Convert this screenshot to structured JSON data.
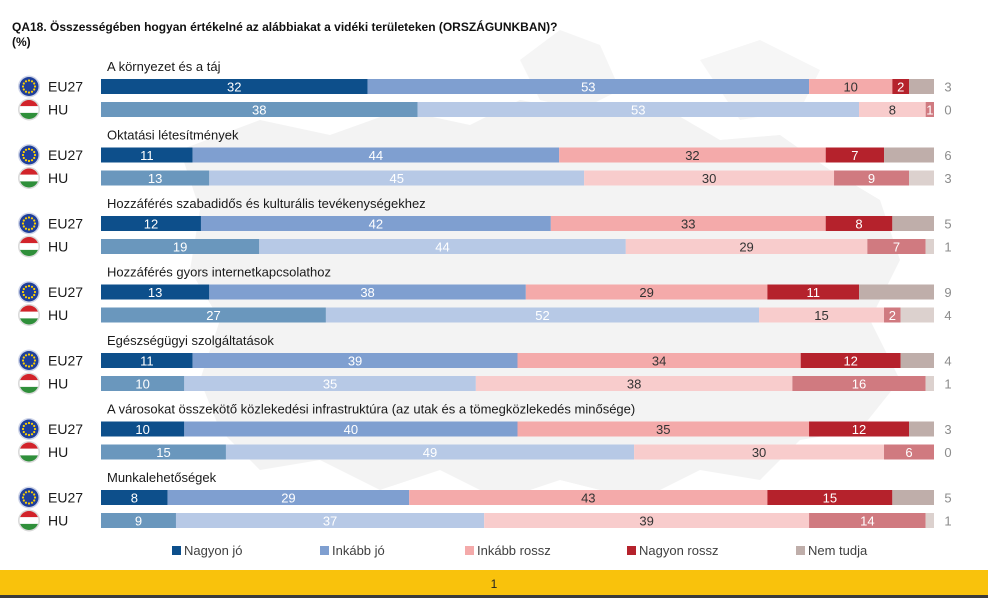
{
  "title_line1": "QA18. Összességében hogyan értékelné az alábbiakat a vidéki területeken (ORSZÁGUNKBAN)?",
  "title_line2": "(%)",
  "page_number": "1",
  "colors": {
    "nagyon_jo": "#0d4f8b",
    "inkabb_jo": "#7f9fd0",
    "inkabb_rossz": "#f4aaaa",
    "nagyon_rossz": "#b5222c",
    "nem_tudja": "#bfaeaa",
    "hu_nagyon_jo": "#6a97bd",
    "hu_inkabb_jo": "#b7c9e6",
    "hu_inkabb_rossz": "#f8cccc",
    "hu_nagyon_rossz": "#d07a80",
    "hu_nem_tudja": "#dcd1ce"
  },
  "chart_data": {
    "type": "bar",
    "orientation": "horizontal",
    "stacked": true,
    "unit": "%",
    "legend": [
      "Nagyon jó",
      "Inkább jó",
      "Inkább rossz",
      "Nagyon rossz",
      "Nem tudja"
    ],
    "legend_position": "bottom",
    "groups": [
      {
        "category": "A környezet és a táj",
        "rows": [
          {
            "label": "EU27",
            "flag": "eu-flag-icon",
            "values": [
              32,
              53,
              10,
              2,
              3
            ]
          },
          {
            "label": "HU",
            "flag": "hu-flag-icon",
            "values": [
              38,
              53,
              8,
              1,
              0
            ]
          }
        ]
      },
      {
        "category": "Oktatási létesítmények",
        "rows": [
          {
            "label": "EU27",
            "flag": "eu-flag-icon",
            "values": [
              11,
              44,
              32,
              7,
              6
            ]
          },
          {
            "label": "HU",
            "flag": "hu-flag-icon",
            "values": [
              13,
              45,
              30,
              9,
              3
            ]
          }
        ]
      },
      {
        "category": "Hozzáférés szabadidős és kulturális tevékenységekhez",
        "rows": [
          {
            "label": "EU27",
            "flag": "eu-flag-icon",
            "values": [
              12,
              42,
              33,
              8,
              5
            ]
          },
          {
            "label": "HU",
            "flag": "hu-flag-icon",
            "values": [
              19,
              44,
              29,
              7,
              1
            ]
          }
        ]
      },
      {
        "category": "Hozzáférés gyors internetkapcsolathoz",
        "rows": [
          {
            "label": "EU27",
            "flag": "eu-flag-icon",
            "values": [
              13,
              38,
              29,
              11,
              9
            ]
          },
          {
            "label": "HU",
            "flag": "hu-flag-icon",
            "values": [
              27,
              52,
              15,
              2,
              4
            ]
          }
        ]
      },
      {
        "category": "Egészségügyi szolgáltatások",
        "rows": [
          {
            "label": "EU27",
            "flag": "eu-flag-icon",
            "values": [
              11,
              39,
              34,
              12,
              4
            ]
          },
          {
            "label": "HU",
            "flag": "hu-flag-icon",
            "values": [
              10,
              35,
              38,
              16,
              1
            ]
          }
        ]
      },
      {
        "category": "A városokat összekötő közlekedési infrastruktúra (az utak és a tömegközlekedés minősége)",
        "rows": [
          {
            "label": "EU27",
            "flag": "eu-flag-icon",
            "values": [
              10,
              40,
              35,
              12,
              3
            ]
          },
          {
            "label": "HU",
            "flag": "hu-flag-icon",
            "values": [
              15,
              49,
              30,
              6,
              0
            ]
          }
        ]
      },
      {
        "category": "Munkalehetőségek",
        "rows": [
          {
            "label": "EU27",
            "flag": "eu-flag-icon",
            "values": [
              8,
              29,
              43,
              15,
              5
            ]
          },
          {
            "label": "HU",
            "flag": "hu-flag-icon",
            "values": [
              9,
              37,
              39,
              14,
              1
            ]
          }
        ]
      }
    ]
  }
}
